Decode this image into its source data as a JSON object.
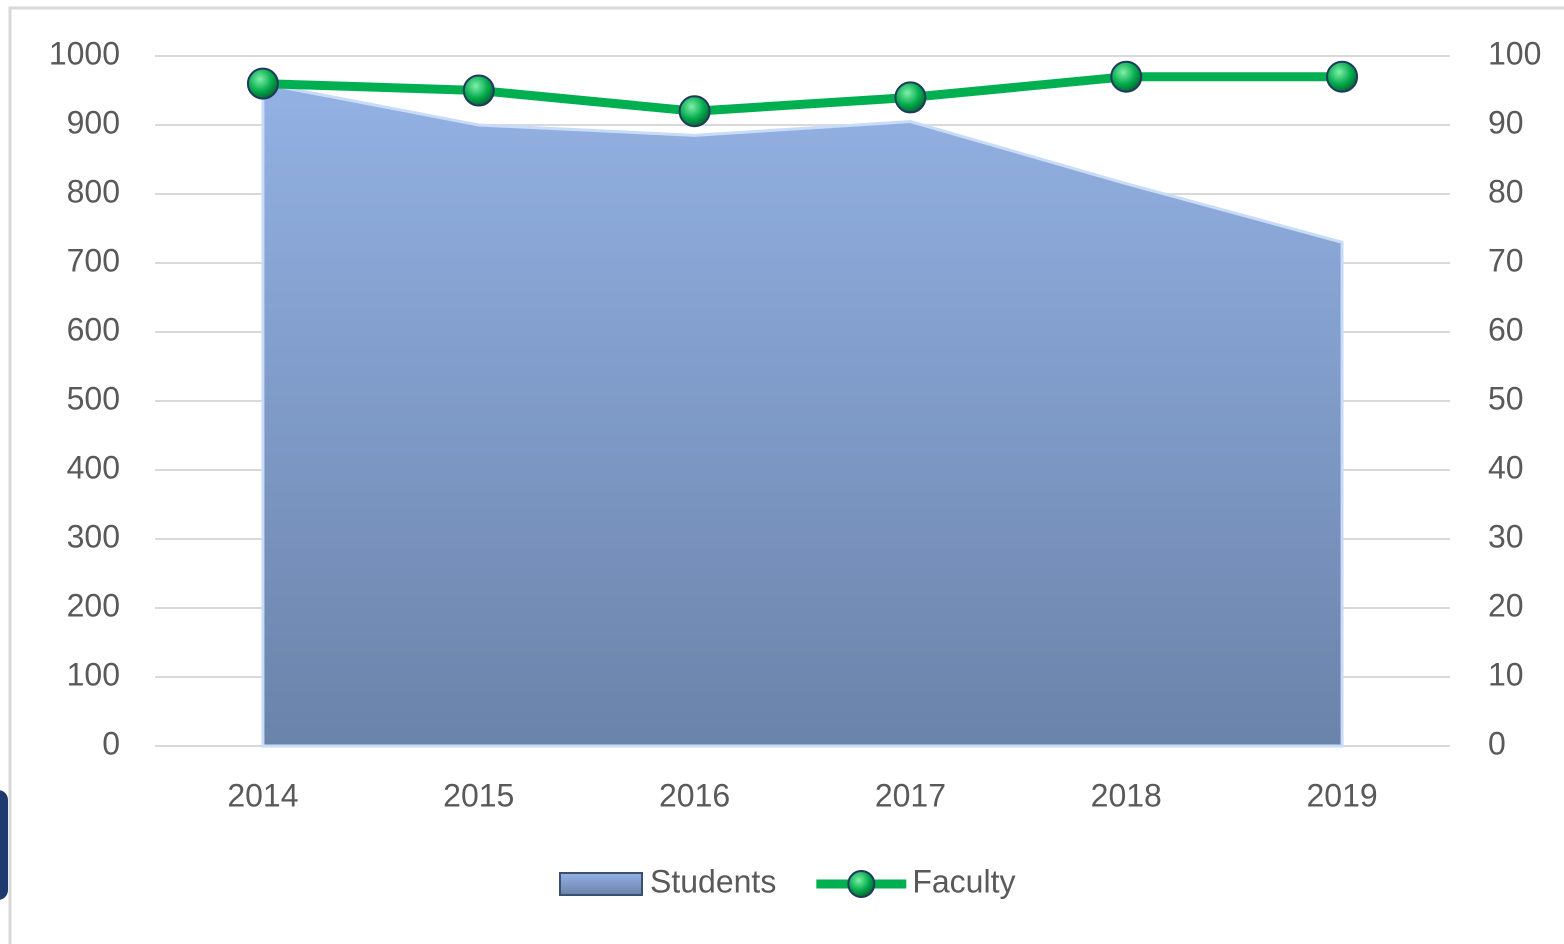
{
  "chart_data": {
    "type": "combo",
    "categories": [
      "2014",
      "2015",
      "2016",
      "2017",
      "2018",
      "2019"
    ],
    "series": [
      {
        "name": "Students",
        "type": "area",
        "color": "#8eaadb",
        "values": [
          960,
          900,
          885,
          905,
          815,
          730
        ]
      },
      {
        "name": "Faculty",
        "type": "line",
        "axis": "y2",
        "color": "#00b050",
        "values": [
          96,
          95,
          92,
          94,
          97,
          97
        ]
      }
    ],
    "ylim": [
      0,
      1000
    ],
    "yticks": [
      0,
      100,
      200,
      300,
      400,
      500,
      600,
      700,
      800,
      900,
      1000
    ],
    "y2lim": [
      0,
      100
    ],
    "y2ticks": [
      0,
      10,
      20,
      30,
      40,
      50,
      60,
      70,
      80,
      90,
      100
    ],
    "grid": true,
    "legend": "bottom"
  }
}
